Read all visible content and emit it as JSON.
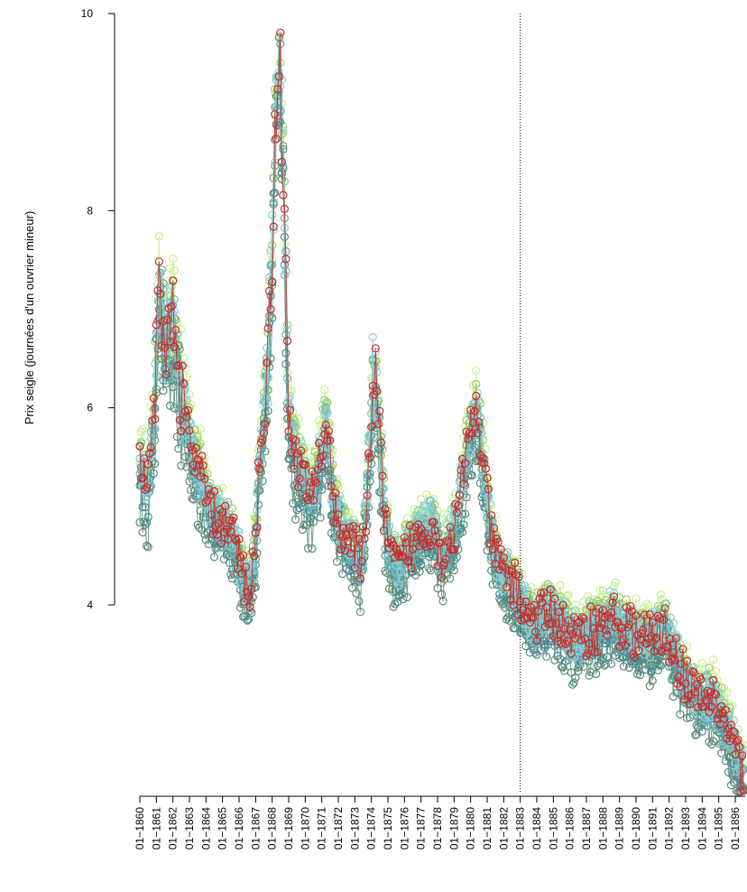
{
  "chart_data": {
    "type": "line",
    "ylabel": "Prix seigle (journées d'un ouvrier mineur)",
    "xlabel": "",
    "ylim": [
      2,
      10
    ],
    "yticks": [
      4,
      6,
      8,
      10
    ],
    "ytick_labels": [
      "4",
      "6",
      "8",
      "10"
    ],
    "xlim": [
      1860,
      1896.6
    ],
    "xtick_labels": [
      "01−1860",
      "01−1861",
      "01−1862",
      "01−1863",
      "01−1864",
      "01−1865",
      "01−1866",
      "01−1867",
      "01−1868",
      "01−1869",
      "01−1870",
      "01−1871",
      "01−1872",
      "01−1873",
      "01−1874",
      "01−1875",
      "01−1876",
      "01−1877",
      "01−1878",
      "01−1879",
      "01−1880",
      "01−1881",
      "01−1882",
      "01−1883",
      "01−1884",
      "01−1885",
      "01−1886",
      "01−1887",
      "01−1888",
      "01−1889",
      "01−1890",
      "01−1891",
      "01−1892",
      "01−1893",
      "01−1894",
      "01−1895",
      "01−1896"
    ],
    "vline_x": 1883,
    "marker": "open-circle",
    "grid": false,
    "legend": "none",
    "colors": [
      "#c8f08c",
      "#9ccc65",
      "#6fa86f",
      "#5a8a7a",
      "#4c8c94",
      "#6cb4c4",
      "#8ad0d8",
      "#cc2a2a"
    ],
    "anchor_x": [
      1860.0,
      1860.5,
      1860.9,
      1861.2,
      1861.6,
      1862.0,
      1862.4,
      1862.8,
      1863.2,
      1863.7,
      1864.2,
      1864.8,
      1865.4,
      1865.9,
      1866.3,
      1866.7,
      1867.0,
      1867.3,
      1867.7,
      1868.0,
      1868.2,
      1868.45,
      1868.7,
      1869.0,
      1869.4,
      1869.9,
      1870.4,
      1870.9,
      1871.3,
      1871.6,
      1872.0,
      1872.5,
      1873.0,
      1873.4,
      1873.8,
      1874.1,
      1874.4,
      1874.8,
      1875.2,
      1875.7,
      1876.2,
      1876.7,
      1877.2,
      1877.7,
      1878.2,
      1878.7,
      1879.2,
      1879.6,
      1880.0,
      1880.3,
      1880.6,
      1880.9,
      1881.3,
      1881.8,
      1882.3,
      1882.8,
      1883.2,
      1883.7,
      1884.2,
      1884.7,
      1885.2,
      1885.7,
      1886.2,
      1886.7,
      1887.2,
      1887.7,
      1888.2,
      1888.7,
      1889.2,
      1889.7,
      1890.2,
      1890.7,
      1891.2,
      1891.7,
      1892.2,
      1892.7,
      1893.2,
      1893.7,
      1894.2,
      1894.7,
      1895.2,
      1895.7,
      1896.1,
      1896.5
    ],
    "series": [
      {
        "offset": 0.25,
        "color": "#c8f08c"
      },
      {
        "offset": 0.15,
        "color": "#9ccc65"
      },
      {
        "offset": 0.0,
        "color": "#6fa86f"
      },
      {
        "offset": -0.22,
        "color": "#5a8a7a"
      },
      {
        "offset": -0.08,
        "color": "#4c8c94"
      },
      {
        "offset": 0.05,
        "color": "#6cb4c4"
      },
      {
        "offset": 0.12,
        "color": "#8ad0d8"
      },
      {
        "offset": 0.08,
        "color": "#cc2a2a"
      }
    ],
    "base_values": [
      5.3,
      5.1,
      6.0,
      7.1,
      6.6,
      6.8,
      6.2,
      5.8,
      5.4,
      5.2,
      4.9,
      4.8,
      4.7,
      4.5,
      4.2,
      4.1,
      4.6,
      5.6,
      6.1,
      7.5,
      8.9,
      9.6,
      8.1,
      5.8,
      5.4,
      5.2,
      5.0,
      5.4,
      5.8,
      5.1,
      4.8,
      4.6,
      4.5,
      4.3,
      5.2,
      6.2,
      5.9,
      4.8,
      4.4,
      4.3,
      4.5,
      4.6,
      4.7,
      4.8,
      4.4,
      4.6,
      4.8,
      5.3,
      5.7,
      5.9,
      5.6,
      5.1,
      4.6,
      4.3,
      4.2,
      4.1,
      3.9,
      3.8,
      3.8,
      3.9,
      3.8,
      3.7,
      3.6,
      3.6,
      3.7,
      3.7,
      3.8,
      3.8,
      3.7,
      3.7,
      3.6,
      3.6,
      3.6,
      3.7,
      3.5,
      3.3,
      3.1,
      3.0,
      3.0,
      3.0,
      2.8,
      2.6,
      2.4,
      2.2
    ]
  }
}
